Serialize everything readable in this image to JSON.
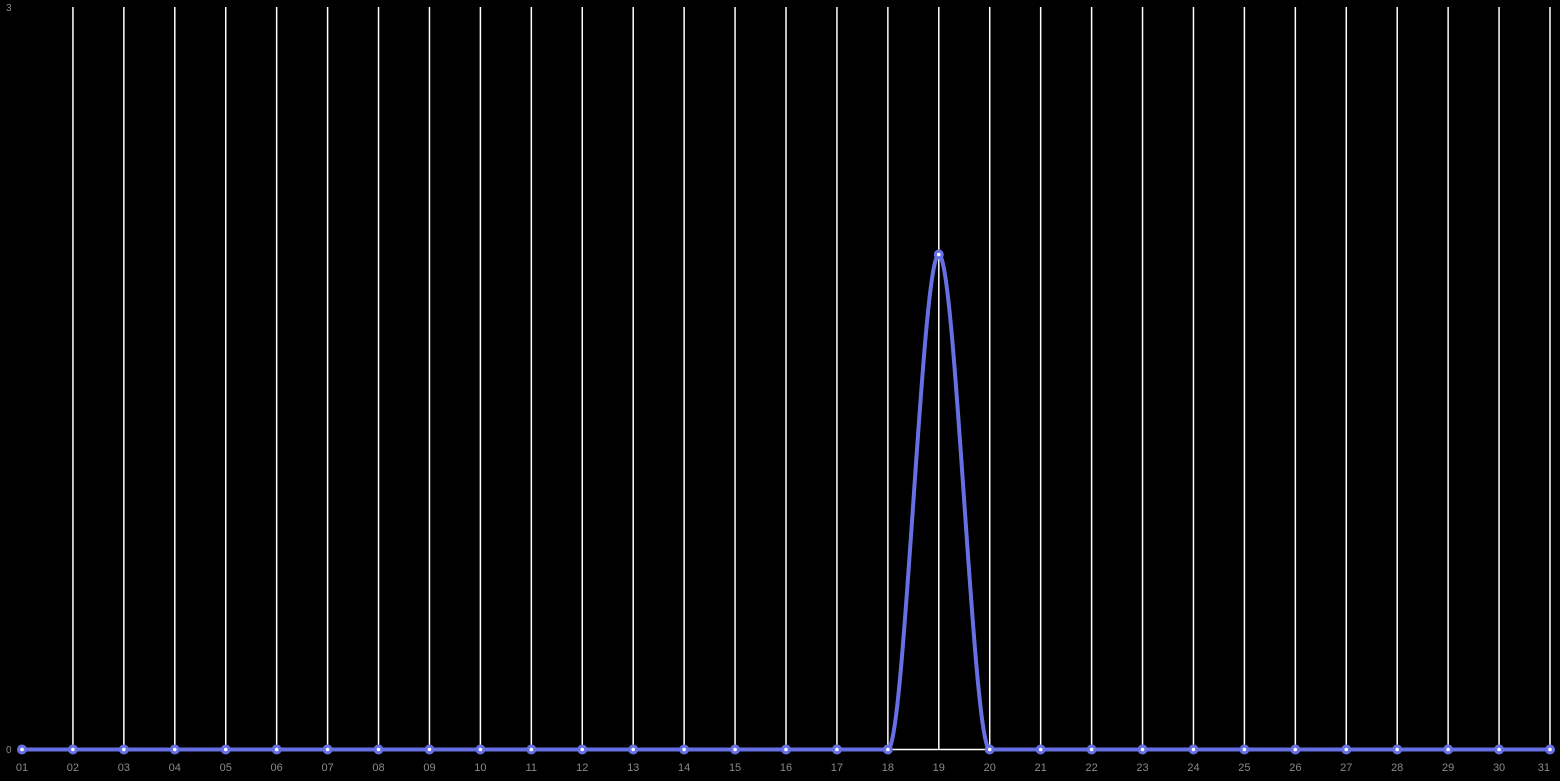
{
  "chart_data": {
    "type": "line",
    "title": "",
    "xlabel": "",
    "ylabel": "",
    "categories": [
      "01",
      "02",
      "03",
      "04",
      "05",
      "06",
      "07",
      "08",
      "09",
      "10",
      "11",
      "12",
      "13",
      "14",
      "15",
      "16",
      "17",
      "18",
      "19",
      "20",
      "21",
      "22",
      "23",
      "24",
      "25",
      "26",
      "27",
      "28",
      "29",
      "30",
      "31"
    ],
    "series": [
      {
        "values": [
          0,
          0,
          0,
          0,
          0,
          0,
          0,
          0,
          0,
          0,
          0,
          0,
          0,
          0,
          0,
          0,
          0,
          0,
          2,
          0,
          0,
          0,
          0,
          0,
          0,
          0,
          0,
          0,
          0,
          0,
          0
        ]
      }
    ],
    "ylim": [
      0,
      3
    ],
    "y_tick_labels": [
      "3",
      "0"
    ],
    "grid": "vertical",
    "legend": "none",
    "smooth": true,
    "markers": true
  },
  "colors": {
    "background": "#000000",
    "grid": "#ffffff",
    "line": "#6670e3",
    "tick_text": "#8a8a8a"
  }
}
